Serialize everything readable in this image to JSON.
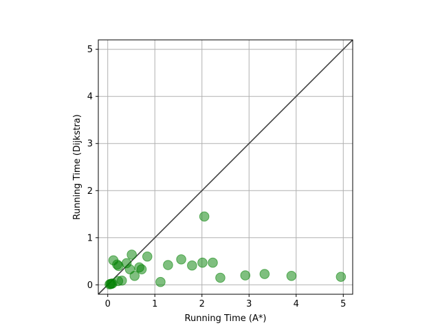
{
  "chart_data": {
    "type": "scatter",
    "xlabel": "Running Time (A*)",
    "ylabel": "Running Time (Dijkstra)",
    "xlim": [
      -0.2,
      5.2
    ],
    "ylim": [
      -0.2,
      5.2
    ],
    "xticks": [
      "0",
      "1",
      "2",
      "3",
      "4",
      "5"
    ],
    "yticks": [
      "0",
      "1",
      "2",
      "3",
      "4",
      "5"
    ],
    "grid": true,
    "reference_line": "y = x",
    "colors": {
      "points": "#008000",
      "reference_line": "#404040",
      "grid": "#b0b0b0"
    },
    "points": [
      {
        "x": 0.04,
        "y": 0.01
      },
      {
        "x": 0.06,
        "y": 0.02
      },
      {
        "x": 0.08,
        "y": 0.02
      },
      {
        "x": 0.1,
        "y": 0.03
      },
      {
        "x": 0.12,
        "y": 0.52
      },
      {
        "x": 0.2,
        "y": 0.43
      },
      {
        "x": 0.23,
        "y": 0.4
      },
      {
        "x": 0.22,
        "y": 0.08
      },
      {
        "x": 0.3,
        "y": 0.09
      },
      {
        "x": 0.4,
        "y": 0.46
      },
      {
        "x": 0.47,
        "y": 0.33
      },
      {
        "x": 0.51,
        "y": 0.64
      },
      {
        "x": 0.57,
        "y": 0.19
      },
      {
        "x": 0.67,
        "y": 0.37
      },
      {
        "x": 0.72,
        "y": 0.33
      },
      {
        "x": 0.84,
        "y": 0.6
      },
      {
        "x": 1.12,
        "y": 0.06
      },
      {
        "x": 1.28,
        "y": 0.42
      },
      {
        "x": 1.56,
        "y": 0.54
      },
      {
        "x": 1.79,
        "y": 0.41
      },
      {
        "x": 2.01,
        "y": 0.47
      },
      {
        "x": 2.05,
        "y": 1.45
      },
      {
        "x": 2.23,
        "y": 0.47
      },
      {
        "x": 2.39,
        "y": 0.15
      },
      {
        "x": 2.92,
        "y": 0.2
      },
      {
        "x": 3.33,
        "y": 0.23
      },
      {
        "x": 3.9,
        "y": 0.19
      },
      {
        "x": 4.95,
        "y": 0.17
      }
    ]
  }
}
